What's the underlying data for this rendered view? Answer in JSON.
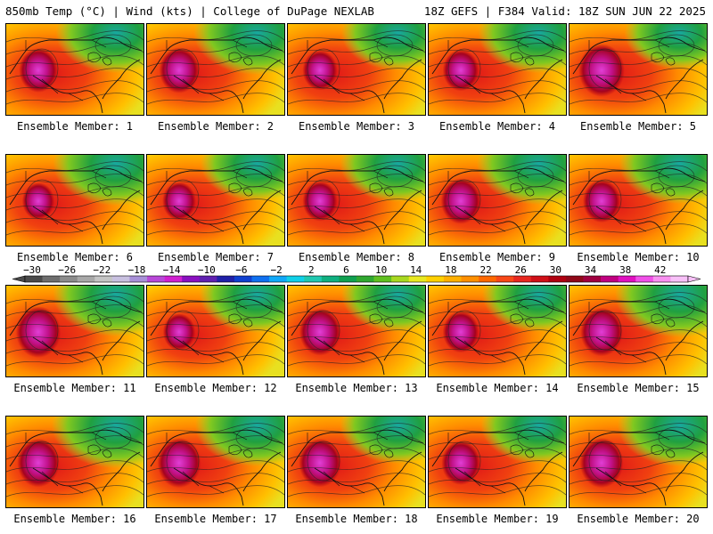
{
  "header": {
    "left": "850mb Temp (°C) | Wind (kts) | College of DuPage NEXLAB",
    "right": "18Z GEFS | F384 Valid: 18Z SUN JUN 22 2025"
  },
  "panels": [
    {
      "label": "Ensemble Member: 1",
      "hot": 0.72,
      "cool": 0.55,
      "core": 0.55
    },
    {
      "label": "Ensemble Member: 2",
      "hot": 0.62,
      "cool": 0.65,
      "core": 0.6
    },
    {
      "label": "Ensemble Member: 3",
      "hot": 0.8,
      "cool": 0.45,
      "core": 0.4
    },
    {
      "label": "Ensemble Member: 4",
      "hot": 0.7,
      "cool": 0.55,
      "core": 0.45
    },
    {
      "label": "Ensemble Member: 5",
      "hot": 0.85,
      "cool": 0.4,
      "core": 0.85
    },
    {
      "label": "Ensemble Member: 6",
      "hot": 0.7,
      "cool": 0.65,
      "core": 0.3
    },
    {
      "label": "Ensemble Member: 7",
      "hot": 0.6,
      "cool": 0.45,
      "core": 0.35
    },
    {
      "label": "Ensemble Member: 8",
      "hot": 0.75,
      "cool": 0.5,
      "core": 0.4
    },
    {
      "label": "Ensemble Member: 9",
      "hot": 0.65,
      "cool": 0.6,
      "core": 0.6
    },
    {
      "label": "Ensemble Member: 10",
      "hot": 0.7,
      "cool": 0.55,
      "core": 0.5
    },
    {
      "label": "Ensemble Member: 11",
      "hot": 0.72,
      "cool": 0.65,
      "core": 0.8
    },
    {
      "label": "Ensemble Member: 12",
      "hot": 0.55,
      "cool": 0.5,
      "core": 0.3
    },
    {
      "label": "Ensemble Member: 13",
      "hot": 0.75,
      "cool": 0.45,
      "core": 0.65
    },
    {
      "label": "Ensemble Member: 14",
      "hot": 0.72,
      "cool": 0.45,
      "core": 0.45
    },
    {
      "label": "Ensemble Member: 15",
      "hot": 0.75,
      "cool": 0.7,
      "core": 0.7
    },
    {
      "label": "Ensemble Member: 16",
      "hot": 0.72,
      "cool": 0.7,
      "core": 0.7
    },
    {
      "label": "Ensemble Member: 17",
      "hot": 0.72,
      "cool": 0.6,
      "core": 0.75
    },
    {
      "label": "Ensemble Member: 18",
      "hot": 0.75,
      "cool": 0.5,
      "core": 0.7
    },
    {
      "label": "Ensemble Member: 19",
      "hot": 0.78,
      "cool": 0.5,
      "core": 0.55
    },
    {
      "label": "Ensemble Member: 20",
      "hot": 0.75,
      "cool": 0.6,
      "core": 0.75
    }
  ],
  "colorbar": {
    "tick_labels": [
      "−30",
      "−26",
      "−22",
      "−18",
      "−14",
      "−10",
      "−6",
      "−2",
      "2",
      "6",
      "10",
      "14",
      "18",
      "22",
      "26",
      "30",
      "34",
      "38",
      "42"
    ],
    "colors": [
      "#4a4a4a",
      "#6e6e6e",
      "#8c8c8c",
      "#a8a8a8",
      "#c4c4c4",
      "#c8c0e0",
      "#a890d8",
      "#b848d8",
      "#d020d0",
      "#8a10c0",
      "#6020b0",
      "#2020a8",
      "#1040d0",
      "#1070f0",
      "#10a8f8",
      "#10d0e8",
      "#20c8b0",
      "#10b080",
      "#10a050",
      "#30a830",
      "#60c020",
      "#a8d820",
      "#e8e820",
      "#ffd000",
      "#ffb000",
      "#ff9000",
      "#ff6800",
      "#f84818",
      "#e82820",
      "#d01018",
      "#b00010",
      "#900818",
      "#a00040",
      "#c00080",
      "#e010c0",
      "#f050e8",
      "#f890f0",
      "#f8c0f8"
    ]
  }
}
